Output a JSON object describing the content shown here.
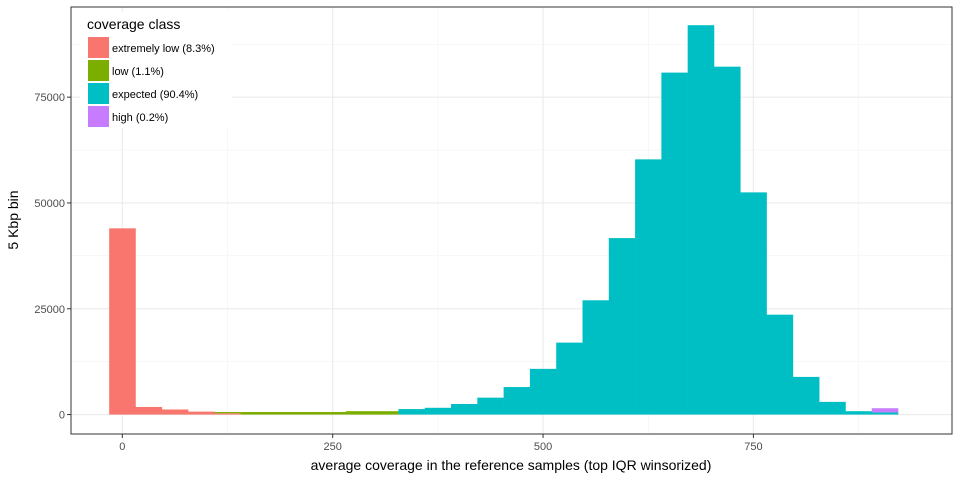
{
  "chart_data": {
    "type": "bar",
    "subtype": "stacked-histogram",
    "xlabel": "average coverage in the reference samples (top IQR winsorized)",
    "ylabel": "5 Kbp bin",
    "xlim": [
      -61,
      986
    ],
    "ylim": [
      -4590,
      96300
    ],
    "x_ticks": [
      0,
      250,
      500,
      750
    ],
    "y_ticks": [
      0,
      25000,
      50000,
      75000
    ],
    "bin_width": 31.25,
    "bin_start": -15.625,
    "grid": true,
    "legend": {
      "title": "coverage class",
      "placement": "top-left"
    },
    "series": [
      {
        "name": "extremely low (8.3%)",
        "color": "#F8766D",
        "values": [
          44000,
          1800,
          1200,
          700,
          300,
          0,
          0,
          0,
          0,
          0,
          0,
          0,
          0,
          0,
          0,
          0,
          0,
          0,
          0,
          0,
          0,
          0,
          0,
          0,
          0,
          0,
          0,
          0,
          0,
          0
        ]
      },
      {
        "name": "low (1.1%)",
        "color": "#7CAE00",
        "values": [
          0,
          0,
          0,
          0,
          300,
          600,
          600,
          600,
          600,
          800,
          800,
          0,
          0,
          0,
          0,
          0,
          0,
          0,
          0,
          0,
          0,
          0,
          0,
          0,
          0,
          0,
          0,
          0,
          0,
          0
        ]
      },
      {
        "name": "expected (90.4%)",
        "color": "#00BFC4",
        "values": [
          0,
          0,
          0,
          0,
          0,
          0,
          0,
          0,
          0,
          0,
          0,
          1300,
          1600,
          2500,
          4000,
          6500,
          10800,
          17000,
          27000,
          41700,
          60300,
          80800,
          92000,
          82200,
          52500,
          23600,
          8900,
          3000,
          800,
          500
        ]
      },
      {
        "name": "high (0.2%)",
        "color": "#C77CFF",
        "values": [
          0,
          0,
          0,
          0,
          0,
          0,
          0,
          0,
          0,
          0,
          0,
          0,
          0,
          0,
          0,
          0,
          0,
          0,
          0,
          0,
          0,
          0,
          0,
          0,
          0,
          0,
          0,
          0,
          0,
          1000
        ]
      }
    ]
  }
}
